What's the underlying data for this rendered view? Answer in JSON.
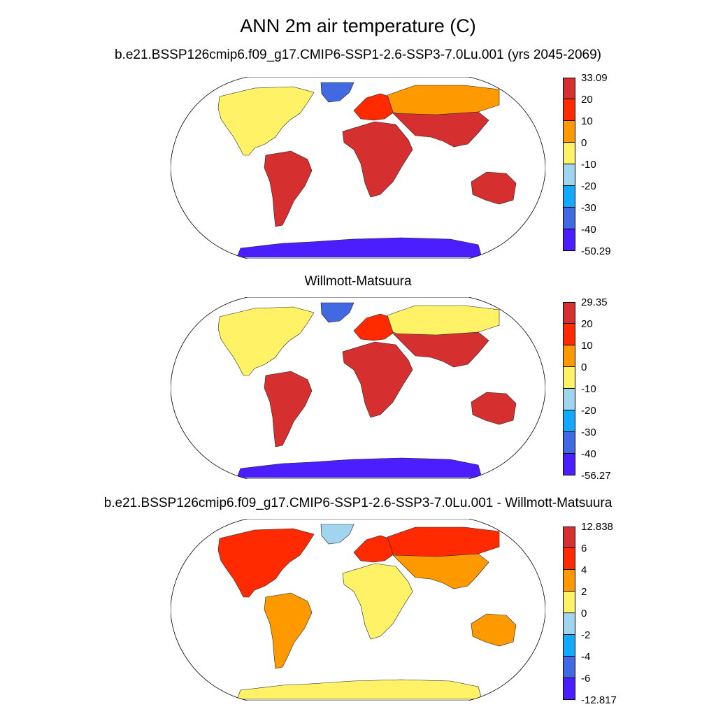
{
  "main_title": "ANN 2m air temperature (C)",
  "panels": [
    {
      "title": "b.e21.BSSP126cmip6.f09_g17.CMIP6-SSP1-2.6-SSP3-7.0Lu.001 (yrs 2045-2069)",
      "colorbar_labels": [
        "33.09",
        "20",
        "10",
        "0",
        "-10",
        "-20",
        "-30",
        "-40",
        "-50.29"
      ],
      "regions": {
        "north_america": 3,
        "greenland": 6,
        "south_america": 0,
        "europe": 1,
        "africa": 0,
        "asia_north": 2,
        "asia_south": 0,
        "australia": 0,
        "antarctica": 7
      }
    },
    {
      "title": "Willmott-Matsuura",
      "colorbar_labels": [
        "29.35",
        "20",
        "10",
        "0",
        "-10",
        "-20",
        "-30",
        "-40",
        "-56.27"
      ],
      "regions": {
        "north_america": 3,
        "greenland": 6,
        "south_america": 0,
        "europe": 1,
        "africa": 0,
        "asia_north": 3,
        "asia_south": 0,
        "australia": 0,
        "antarctica": 7
      }
    },
    {
      "title": "b.e21.BSSP126cmip6.f09_g17.CMIP6-SSP1-2.6-SSP3-7.0Lu.001 - Willmott-Matsuura",
      "colorbar_labels": [
        "12.838",
        "6",
        "4",
        "2",
        "0",
        "-2",
        "-4",
        "-6",
        "-12.817"
      ],
      "regions": {
        "north_america": 1,
        "greenland": 4,
        "south_america": 2,
        "europe": 1,
        "africa": 3,
        "asia_north": 1,
        "asia_south": 2,
        "australia": 2,
        "antarctica": 3
      }
    }
  ],
  "colors": [
    "#d62f2f",
    "#ff2a00",
    "#ff9900",
    "#fff266",
    "#a1d4ee",
    "#12aaff",
    "#4169e1",
    "#4b1eff"
  ]
}
